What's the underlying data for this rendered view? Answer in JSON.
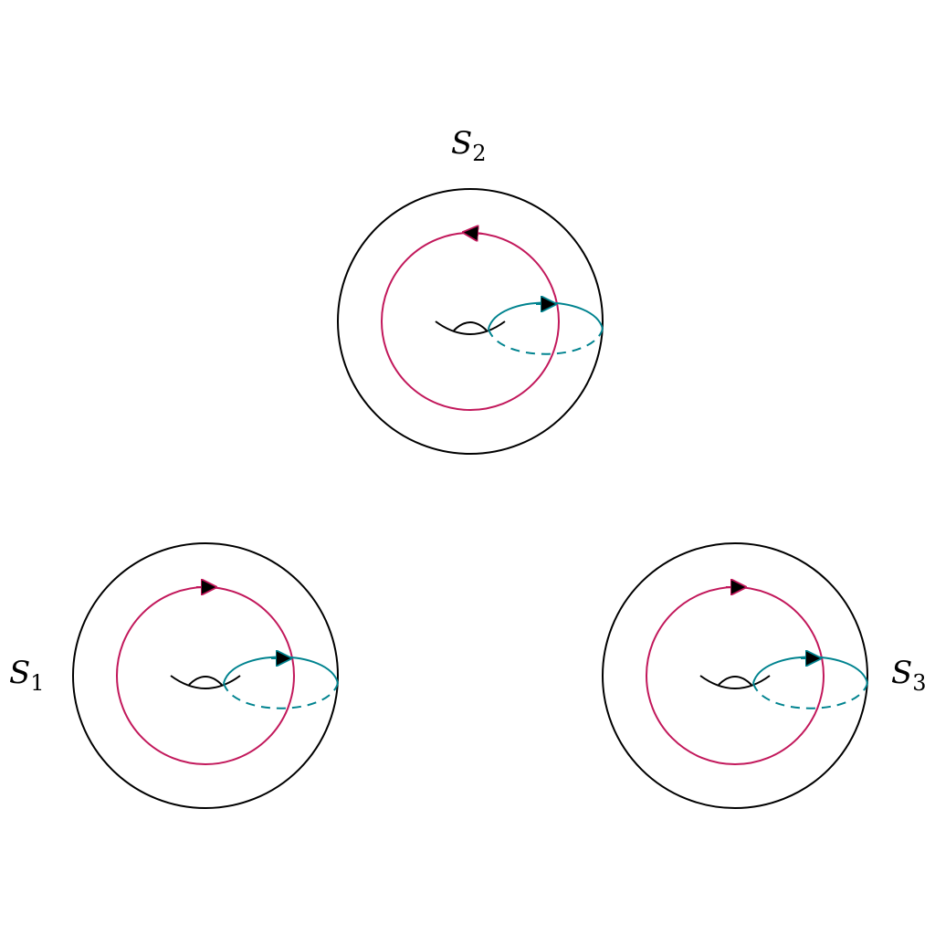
{
  "colors": {
    "outline": "#000000",
    "meridian_curve": "#c2185b",
    "longitude_curve": "#00838f",
    "arrowhead_fill": "#000000"
  },
  "surfaces": [
    {
      "id": "S1",
      "label_main": "S",
      "label_sub": "1",
      "meridian_arrow_direction": "clockwise",
      "longitude_arrow_direction": "forward"
    },
    {
      "id": "S2",
      "label_main": "S",
      "label_sub": "2",
      "meridian_arrow_direction": "counterclockwise",
      "longitude_arrow_direction": "forward"
    },
    {
      "id": "S3",
      "label_main": "S",
      "label_sub": "3",
      "meridian_arrow_direction": "clockwise",
      "longitude_arrow_direction": "forward"
    }
  ]
}
